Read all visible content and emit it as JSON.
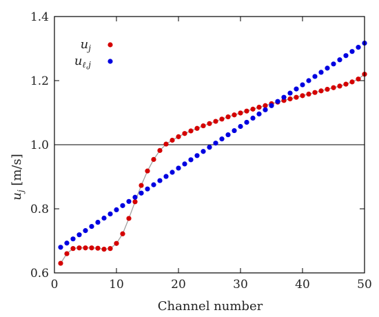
{
  "chart_data": {
    "type": "scatter",
    "xlabel": "Channel number",
    "ylabel": "u_j [m/s]",
    "xlim": [
      0,
      50
    ],
    "ylim": [
      0.6,
      1.4
    ],
    "xticks": [
      "0",
      "10",
      "20",
      "30",
      "40",
      "50"
    ],
    "yticks": [
      "0.6",
      "0.8",
      "1.0",
      "1.2",
      "1.4"
    ],
    "grid": false,
    "legend_position": "top-left",
    "reference_line": {
      "y": 1.0,
      "color": "#000000"
    },
    "series": [
      {
        "name": "u_j",
        "legend_main": "u",
        "legend_sub": "j",
        "color": "#d40000",
        "connected": true,
        "line_color": "#a0a0a0",
        "x": [
          1,
          2,
          3,
          4,
          5,
          6,
          7,
          8,
          9,
          10,
          11,
          12,
          13,
          14,
          15,
          16,
          17,
          18,
          19,
          20,
          21,
          22,
          23,
          24,
          25,
          26,
          27,
          28,
          29,
          30,
          31,
          32,
          33,
          34,
          35,
          36,
          37,
          38,
          39,
          40,
          41,
          42,
          43,
          44,
          45,
          46,
          47,
          48,
          49,
          50
        ],
        "y": [
          0.63,
          0.66,
          0.676,
          0.678,
          0.678,
          0.678,
          0.677,
          0.674,
          0.676,
          0.692,
          0.722,
          0.77,
          0.822,
          0.873,
          0.918,
          0.954,
          0.982,
          1.002,
          1.014,
          1.025,
          1.035,
          1.043,
          1.051,
          1.059,
          1.066,
          1.073,
          1.08,
          1.087,
          1.093,
          1.099,
          1.105,
          1.111,
          1.117,
          1.122,
          1.128,
          1.133,
          1.138,
          1.143,
          1.148,
          1.153,
          1.158,
          1.163,
          1.168,
          1.173,
          1.178,
          1.183,
          1.189,
          1.196,
          1.205,
          1.22
        ]
      },
      {
        "name": "u_{ℓ,j}",
        "legend_main": "u",
        "legend_sub": "ℓ,j",
        "color": "#0000e0",
        "connected": false,
        "x": [
          1,
          2,
          3,
          4,
          5,
          6,
          7,
          8,
          9,
          10,
          11,
          12,
          13,
          14,
          15,
          16,
          17,
          18,
          19,
          20,
          21,
          22,
          23,
          24,
          25,
          26,
          27,
          28,
          29,
          30,
          31,
          32,
          33,
          34,
          35,
          36,
          37,
          38,
          39,
          40,
          41,
          42,
          43,
          44,
          45,
          46,
          47,
          48,
          49,
          50
        ],
        "y": [
          0.68,
          0.693,
          0.706,
          0.719,
          0.732,
          0.745,
          0.758,
          0.771,
          0.784,
          0.797,
          0.81,
          0.823,
          0.836,
          0.849,
          0.862,
          0.875,
          0.888,
          0.901,
          0.914,
          0.927,
          0.94,
          0.953,
          0.966,
          0.979,
          0.992,
          1.005,
          1.018,
          1.031,
          1.044,
          1.057,
          1.07,
          1.083,
          1.096,
          1.109,
          1.122,
          1.135,
          1.148,
          1.161,
          1.174,
          1.187,
          1.2,
          1.213,
          1.226,
          1.239,
          1.252,
          1.265,
          1.278,
          1.291,
          1.304,
          1.317
        ]
      }
    ]
  },
  "labels": {
    "ylabel_main": "u",
    "ylabel_sub": "j",
    "ylabel_rest": " [m/s]"
  }
}
